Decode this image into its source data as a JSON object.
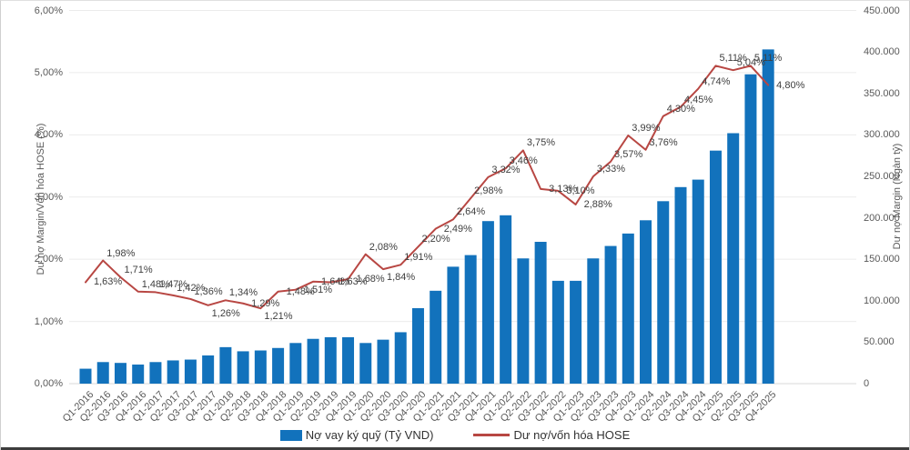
{
  "chart_data": {
    "type": "combo",
    "categories": [
      "Q1-2016",
      "Q2-2016",
      "Q3-2016",
      "Q4-2016",
      "Q1-2017",
      "Q2-2017",
      "Q3-2017",
      "Q4-2017",
      "Q1-2018",
      "Q2-2018",
      "Q3-2018",
      "Q4-2018",
      "Q1-2019",
      "Q2-2019",
      "Q3-2019",
      "Q4-2019",
      "Q1-2020",
      "Q2-2020",
      "Q3-2020",
      "Q4-2020",
      "Q1-2021",
      "Q2-2021",
      "Q3-2021",
      "Q4-2021",
      "Q1-2022",
      "Q2-2022",
      "Q3-2022",
      "Q4-2022",
      "Q1-2023",
      "Q2-2023",
      "Q3-2023",
      "Q4-2023",
      "Q1-2024",
      "Q2-2024",
      "Q3-2024",
      "Q4-2024",
      "Q1-2025",
      "Q2-2025",
      "Q3-2025",
      "Q4-2025"
    ],
    "series": [
      {
        "name": "Nợ vay ký quỹ (Tỷ VND)",
        "type": "bar",
        "axis": "right",
        "color": "#1272bc",
        "values": [
          18000,
          26000,
          25000,
          23000,
          26000,
          28000,
          29000,
          34000,
          44000,
          39000,
          40000,
          43000,
          49000,
          54000,
          56000,
          56000,
          49000,
          53000,
          62000,
          91000,
          112000,
          141000,
          155000,
          196000,
          203000,
          151000,
          171000,
          124000,
          124000,
          151000,
          166000,
          181000,
          197000,
          220000,
          237000,
          246000,
          281000,
          302000,
          373000,
          403000
        ]
      },
      {
        "name": "Dư nợ/vốn hóa HOSE",
        "type": "line",
        "axis": "left",
        "color": "#b84743",
        "values": [
          1.63,
          1.98,
          1.71,
          1.48,
          1.47,
          1.42,
          1.36,
          1.26,
          1.34,
          1.29,
          1.21,
          1.48,
          1.51,
          1.64,
          1.63,
          1.68,
          2.08,
          1.84,
          1.91,
          2.2,
          2.49,
          2.64,
          2.98,
          3.32,
          3.46,
          3.75,
          3.13,
          3.1,
          2.88,
          3.33,
          3.57,
          3.99,
          3.76,
          4.3,
          4.45,
          4.74,
          5.11,
          5.04,
          5.11,
          4.8
        ],
        "point_labels": [
          "1,63%",
          "1,98%",
          "1,71%",
          "1,48%",
          "1,47%",
          "1,42%",
          "1,36%",
          "1,26%",
          "1,34%",
          "1,29%",
          "1,21%",
          "1,48%",
          "1,51%",
          "1,64%",
          "1,63%",
          "1,68%",
          "2,08%",
          "1,84%",
          "1,91%",
          "2,20%",
          "2,49%",
          "2,64%",
          "2,98%",
          "3,32%",
          "3,46%",
          "3,75%",
          "3,13%",
          "3,10%",
          "2,88%",
          "3,33%",
          "3,57%",
          "3,99%",
          "3,76%",
          "4,30%",
          "4,45%",
          "4,74%",
          "5,11%",
          "5,04%",
          "5,11%",
          "4,80%"
        ],
        "label_positions": [
          "level",
          "above",
          "above",
          "above",
          "above",
          "above",
          "above",
          "below",
          "above",
          "level",
          "below",
          "level",
          "level",
          "level",
          "level",
          "level",
          "above",
          "below",
          "above",
          "above",
          "level",
          "above",
          "above",
          "above",
          "above",
          "above",
          "level",
          "level",
          "level",
          "above",
          "above",
          "above",
          "above",
          "above",
          "above",
          "above",
          "above",
          "above",
          "above",
          "level"
        ]
      }
    ],
    "left_axis": {
      "title": "Dư nợ Margin/Vốn hóa HOSE (%)",
      "min": 0,
      "max": 6,
      "tick_labels": [
        "6,00%",
        "5,00%",
        "4,00%",
        "3,00%",
        "2,00%",
        "1,00%",
        "0,00%"
      ],
      "tick_values": [
        6,
        5,
        4,
        3,
        2,
        1,
        0
      ]
    },
    "right_axis": {
      "title": "Dư nợ Margin (Ngàn tỷ)",
      "min": 0,
      "max": 450000,
      "tick_labels": [
        "450.000",
        "400.000",
        "350.000",
        "300.000",
        "250.000",
        "200.000",
        "150.000",
        "100.000",
        "50.000",
        "0"
      ],
      "tick_values": [
        450000,
        400000,
        350000,
        300000,
        250000,
        200000,
        150000,
        100000,
        50000,
        0
      ]
    },
    "grid": true,
    "legend_position": "bottom"
  },
  "legend": {
    "bar_label": "Nợ vay ký quỹ (Tỷ VND)",
    "line_label": "Dư nợ/vốn hóa HOSE"
  },
  "colors": {
    "bar": "#1272bc",
    "line": "#b84743",
    "grid": "#ebebeb",
    "baseline": "#d9d9d9",
    "tick_text": "#595959",
    "data_label_text": "#3f3f3f"
  }
}
